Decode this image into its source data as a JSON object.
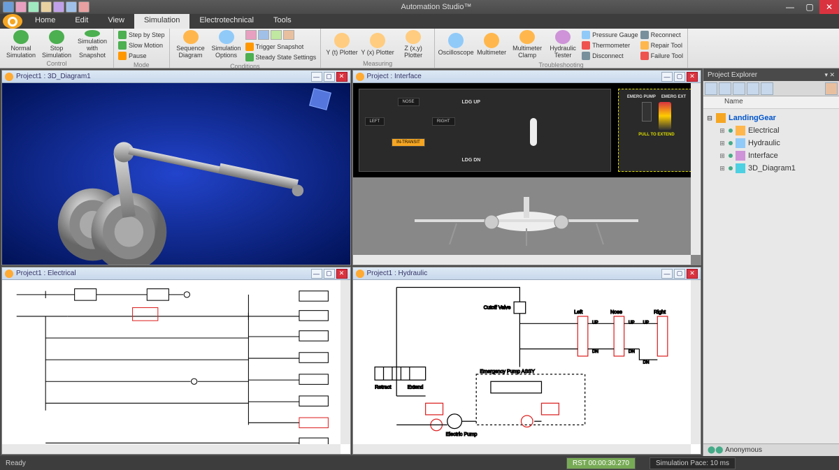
{
  "app": {
    "title": "Automation Studio™"
  },
  "menubar": {
    "tabs": [
      "Home",
      "Edit",
      "View",
      "Simulation",
      "Electrotechnical",
      "Tools"
    ],
    "active_index": 3
  },
  "ribbon": {
    "groups": [
      {
        "label": "Control",
        "large_buttons": [
          {
            "text": "Normal Simulation",
            "color": "#4caf50"
          },
          {
            "text": "Stop Simulation",
            "color": "#4caf50"
          },
          {
            "text": "Simulation with Snapshot",
            "color": "#4caf50"
          }
        ]
      },
      {
        "label": "Mode",
        "small_buttons": [
          {
            "text": "Step by Step",
            "color": "#4caf50"
          },
          {
            "text": "Slow Motion",
            "color": "#4caf50"
          },
          {
            "text": "Pause",
            "color": "#ff9800"
          }
        ]
      },
      {
        "label": "Conditions",
        "icon_row_colors": [
          "#e8a0c0",
          "#a0c0e8",
          "#c0e8a0",
          "#e8c0a0"
        ],
        "small_buttons": [
          {
            "text": "Trigger Snapshot",
            "color": "#ff9800"
          },
          {
            "text": "Steady State Settings",
            "color": "#4caf50"
          }
        ],
        "large_buttons": [
          {
            "text": "Sequence Diagram",
            "color": "#ffb74d"
          },
          {
            "text": "Simulation Options",
            "color": "#90caf9"
          }
        ]
      },
      {
        "label": "Measuring",
        "large_buttons": [
          {
            "text": "Y (t) Plotter",
            "color": "#ffcc80"
          },
          {
            "text": "Y (x) Plotter",
            "color": "#ffcc80"
          },
          {
            "text": "Z (x,y) Plotter",
            "color": "#ffcc80"
          }
        ]
      },
      {
        "label": "Troubleshooting",
        "large_buttons": [
          {
            "text": "Oscilloscope",
            "color": "#90caf9"
          },
          {
            "text": "Multimeter",
            "color": "#ffb74d"
          },
          {
            "text": "Multimeter Clamp",
            "color": "#ffb74d"
          },
          {
            "text": "Hydraulic Tester",
            "color": "#ce93d8"
          }
        ],
        "small_buttons": [
          {
            "text": "Pressure Gauge",
            "color": "#90caf9"
          },
          {
            "text": "Thermometer",
            "color": "#ef5350"
          },
          {
            "text": "Disconnect",
            "color": "#78909c"
          },
          {
            "text": "Reconnect",
            "color": "#78909c"
          },
          {
            "text": "Repair Tool",
            "color": "#ffb74d"
          },
          {
            "text": "Failure Tool",
            "color": "#ef5350"
          }
        ]
      }
    ]
  },
  "panels": {
    "tl": {
      "title": "Project1 : 3D_Diagram1"
    },
    "tr": {
      "title": "Project : Interface",
      "left_panel": {
        "nose": "NOSE",
        "left": "LEFT",
        "right": "RIGHT",
        "intransit": "IN-TRANSIT",
        "ldg_up": "LDG UP",
        "ldg_dn": "LDG DN"
      },
      "right_panel": {
        "pump": "EMERG PUMP",
        "ext": "EMERG EXT",
        "pull": "PULL TO EXTEND"
      }
    },
    "bl": {
      "title": "Project1 : Electrical"
    },
    "br": {
      "title": "Project1 : Hydraulic",
      "labels": {
        "cutoff": "Cutoff Valve",
        "retract": "Retract",
        "extend": "Extend",
        "emergency": "Emergency Pump ASSY",
        "electric": "Electric Pump",
        "left": "Left",
        "nose": "Nose",
        "right": "Right",
        "up": "UP",
        "dn": "DN"
      }
    }
  },
  "explorer": {
    "title": "Project Explorer",
    "col": "Name",
    "root": "LandingGear",
    "children": [
      {
        "name": "Electrical",
        "icon_color": "#ffb74d"
      },
      {
        "name": "Hydraulic",
        "icon_color": "#90caf9"
      },
      {
        "name": "Interface",
        "icon_color": "#ce93d8"
      },
      {
        "name": "3D_Diagram1",
        "icon_color": "#4dd0e1"
      }
    ]
  },
  "statusbar": {
    "ready": "Ready",
    "rst": "RST 00:00:30.270",
    "pace": "Simulation Pace: 10 ms",
    "user": "Anonymous"
  },
  "colors": {
    "schematic_red": "#dd2222",
    "schematic_black": "#000000"
  }
}
